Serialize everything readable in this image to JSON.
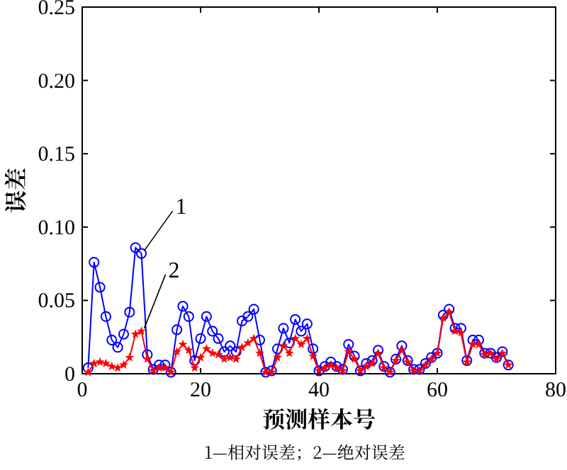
{
  "chart_data": {
    "type": "line",
    "xlabel": "预测样本号",
    "ylabel": "误差",
    "x": [
      1,
      2,
      3,
      4,
      5,
      6,
      7,
      8,
      9,
      10,
      11,
      12,
      13,
      14,
      15,
      16,
      17,
      18,
      19,
      20,
      21,
      22,
      23,
      24,
      25,
      26,
      27,
      28,
      29,
      30,
      31,
      32,
      33,
      34,
      35,
      36,
      37,
      38,
      39,
      40,
      41,
      42,
      43,
      44,
      45,
      46,
      47,
      48,
      49,
      50,
      51,
      52,
      53,
      54,
      55,
      56,
      57,
      58,
      59,
      60,
      61,
      62,
      63,
      64,
      65,
      66,
      67,
      68,
      69,
      70,
      71,
      72
    ],
    "series": [
      {
        "name": "1",
        "color": "#0000ff",
        "marker": "circle",
        "values": [
          0.004,
          0.076,
          0.059,
          0.039,
          0.023,
          0.018,
          0.027,
          0.042,
          0.086,
          0.082,
          0.013,
          0.003,
          0.006,
          0.006,
          0.001,
          0.03,
          0.046,
          0.039,
          0.009,
          0.024,
          0.039,
          0.029,
          0.024,
          0.015,
          0.019,
          0.015,
          0.036,
          0.039,
          0.044,
          0.023,
          0.001,
          0.002,
          0.017,
          0.031,
          0.021,
          0.037,
          0.029,
          0.034,
          0.017,
          0.002,
          0.005,
          0.008,
          0.005,
          0.003,
          0.02,
          0.012,
          0.002,
          0.007,
          0.009,
          0.016,
          0.005,
          0.001,
          0.01,
          0.019,
          0.009,
          0.003,
          0.003,
          0.007,
          0.011,
          0.014,
          0.04,
          0.044,
          0.031,
          0.031,
          0.009,
          0.023,
          0.023,
          0.014,
          0.014,
          0.011,
          0.015,
          0.006
        ]
      },
      {
        "name": "2",
        "color": "#ff0000",
        "marker": "star",
        "values": [
          0.001,
          0.007,
          0.008,
          0.007,
          0.005,
          0.004,
          0.006,
          0.011,
          0.027,
          0.029,
          0.01,
          0.002,
          0.004,
          0.004,
          0.001,
          0.015,
          0.02,
          0.016,
          0.004,
          0.011,
          0.017,
          0.014,
          0.013,
          0.01,
          0.011,
          0.01,
          0.018,
          0.021,
          0.024,
          0.014,
          0.001,
          0.001,
          0.011,
          0.019,
          0.014,
          0.024,
          0.02,
          0.024,
          0.012,
          0.002,
          0.004,
          0.006,
          0.004,
          0.002,
          0.015,
          0.01,
          0.002,
          0.005,
          0.007,
          0.014,
          0.004,
          0.001,
          0.009,
          0.016,
          0.008,
          0.002,
          0.002,
          0.006,
          0.01,
          0.014,
          0.038,
          0.042,
          0.029,
          0.028,
          0.008,
          0.02,
          0.02,
          0.013,
          0.014,
          0.01,
          0.014,
          0.006
        ]
      }
    ],
    "xlim": [
      0,
      80
    ],
    "xticks": [
      0,
      20,
      40,
      60,
      80
    ],
    "ylim": [
      0,
      0.25
    ],
    "yticks": [
      0,
      0.05,
      {
        "value": 0.1,
        "label": "0.10"
      },
      0.15,
      {
        "value": 0.2,
        "label": "0.20"
      },
      0.25
    ],
    "annotations": [
      "1—相对误差；2—绝对误差"
    ],
    "grid": false,
    "legend": false,
    "line_style": "solid"
  }
}
